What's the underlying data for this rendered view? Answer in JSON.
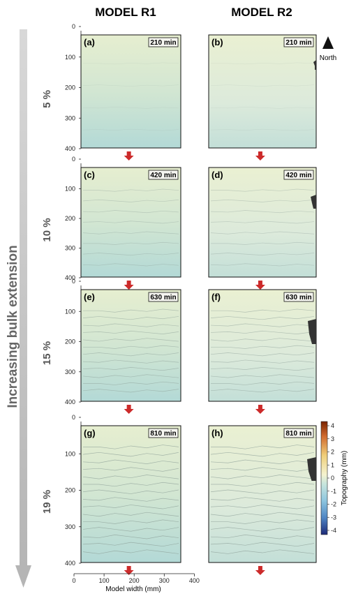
{
  "column_titles": [
    "MODEL R1",
    "MODEL R2"
  ],
  "side_label": "Increasing bulk extension",
  "north_label": "North",
  "x_axis_label": "Model width (mm)",
  "x_ticks": [
    "0",
    "100",
    "200",
    "300",
    "400"
  ],
  "y_ticks": [
    "0",
    "100",
    "200",
    "300",
    "400"
  ],
  "colorbar": {
    "label": "Topography (mm)",
    "ticks": [
      "4",
      "3",
      "2",
      "1",
      "0",
      "-1",
      "-2",
      "-3",
      "-4"
    ],
    "colors": [
      "#8b2a00",
      "#d9733a",
      "#f0c96a",
      "#f3f1c8",
      "#c6e4dc",
      "#9acfe0",
      "#5b9dcc",
      "#2f5aa8",
      "#1e2f7a"
    ]
  },
  "rows": [
    {
      "extension": "5 %",
      "panels": [
        {
          "letter": "(a)",
          "time": "210 min"
        },
        {
          "letter": "(b)",
          "time": "210 min"
        }
      ]
    },
    {
      "extension": "10 %",
      "panels": [
        {
          "letter": "(c)",
          "time": "420 min"
        },
        {
          "letter": "(d)",
          "time": "420 min"
        }
      ]
    },
    {
      "extension": "15 %",
      "panels": [
        {
          "letter": "(e)",
          "time": "630 min"
        },
        {
          "letter": "(f)",
          "time": "630 min"
        }
      ]
    },
    {
      "extension": "19 %",
      "panels": [
        {
          "letter": "(g)",
          "time": "810 min"
        },
        {
          "letter": "(h)",
          "time": "810 min"
        }
      ]
    }
  ]
}
